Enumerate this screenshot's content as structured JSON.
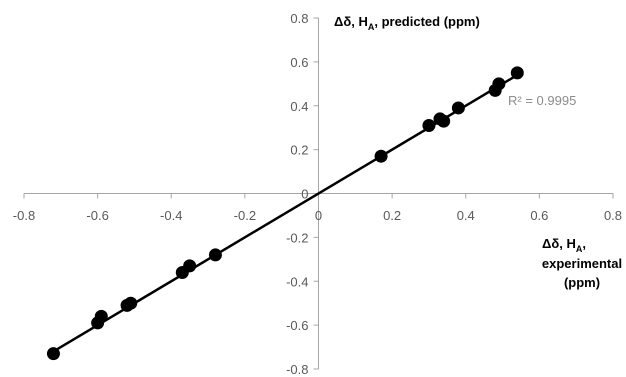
{
  "chart_data": {
    "type": "scatter",
    "title": "",
    "xlabel": {
      "line1": "Δδ, H",
      "line1_sub": "A",
      "line1_end": ",",
      "line2": "experimental",
      "line3": "(ppm)"
    },
    "ylabel": {
      "text": "Δδ, H",
      "sub": "A",
      "text_end": ", predicted (ppm)"
    },
    "xlim": [
      -0.8,
      0.8
    ],
    "ylim": [
      -0.8,
      0.8
    ],
    "x_ticks": [
      "-0.8",
      "-0.6",
      "-0.4",
      "-0.2",
      "0",
      "0.2",
      "0.4",
      "0.6",
      "0.8"
    ],
    "y_ticks": [
      "0.8",
      "0.6",
      "0.4",
      "0.2",
      "0",
      "-0.2",
      "-0.4",
      "-0.6",
      "-0.8"
    ],
    "grid": false,
    "series": [
      {
        "points": [
          {
            "x": -0.72,
            "y": -0.73
          },
          {
            "x": -0.6,
            "y": -0.59
          },
          {
            "x": -0.59,
            "y": -0.56
          },
          {
            "x": -0.52,
            "y": -0.51
          },
          {
            "x": -0.51,
            "y": -0.5
          },
          {
            "x": -0.37,
            "y": -0.36
          },
          {
            "x": -0.35,
            "y": -0.33
          },
          {
            "x": -0.28,
            "y": -0.28
          },
          {
            "x": 0.17,
            "y": 0.17
          },
          {
            "x": 0.3,
            "y": 0.31
          },
          {
            "x": 0.33,
            "y": 0.34
          },
          {
            "x": 0.34,
            "y": 0.33
          },
          {
            "x": 0.38,
            "y": 0.39
          },
          {
            "x": 0.48,
            "y": 0.47
          },
          {
            "x": 0.49,
            "y": 0.5
          },
          {
            "x": 0.54,
            "y": 0.55
          }
        ],
        "color": "#000000"
      }
    ],
    "trendline": {
      "x_range": [
        -0.72,
        0.54
      ],
      "slope": 1.0,
      "intercept": 0.0,
      "color": "#000000",
      "r_squared_label": "R² = 0.9995"
    },
    "colors": {
      "axis": "#a6a6a6",
      "tick_label": "#595959",
      "r2_label": "#8c8c8c"
    }
  }
}
